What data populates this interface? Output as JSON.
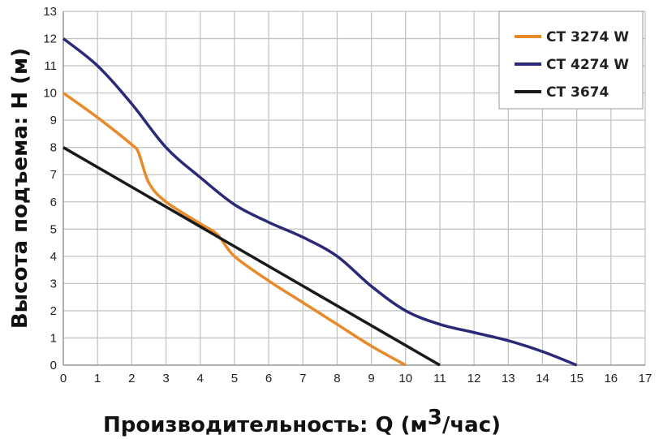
{
  "chart_data": {
    "type": "line",
    "title": "",
    "xlabel": "Производительность: Q (м3/час)",
    "xlabel_main": "Производительность: Q (м",
    "xlabel_sup": "3",
    "xlabel_tail": "/час)",
    "ylabel": "Высота подъема: H (м)",
    "xlim": [
      0,
      17
    ],
    "ylim": [
      0,
      13
    ],
    "xticks": [
      0,
      1,
      2,
      3,
      4,
      5,
      6,
      7,
      8,
      9,
      10,
      11,
      12,
      13,
      14,
      15,
      16,
      17
    ],
    "yticks": [
      0,
      1,
      2,
      3,
      4,
      5,
      6,
      7,
      8,
      9,
      10,
      11,
      12,
      13
    ],
    "grid": true,
    "legend_position": "top-right",
    "series": [
      {
        "name": "CT 3274 W",
        "color": "#e8892a",
        "x": [
          0,
          1,
          2,
          2.2,
          2.5,
          3,
          4,
          4.5,
          5,
          6,
          7,
          8,
          9,
          10
        ],
        "y": [
          10,
          9.1,
          8.1,
          7.8,
          6.7,
          6,
          5.2,
          4.8,
          4,
          3.1,
          2.3,
          1.5,
          0.7,
          0
        ]
      },
      {
        "name": "CT 4274 W",
        "color": "#2b2a78",
        "x": [
          0,
          1,
          2,
          3,
          4,
          5,
          6,
          7,
          8,
          9,
          10,
          11,
          12,
          13,
          14,
          15
        ],
        "y": [
          12,
          11,
          9.6,
          8,
          6.9,
          5.9,
          5.25,
          4.7,
          4,
          2.9,
          2,
          1.5,
          1.2,
          0.9,
          0.5,
          0
        ]
      },
      {
        "name": "CT 3674",
        "color": "#1a1a1a",
        "x": [
          0,
          11
        ],
        "y": [
          8,
          0
        ]
      }
    ]
  }
}
